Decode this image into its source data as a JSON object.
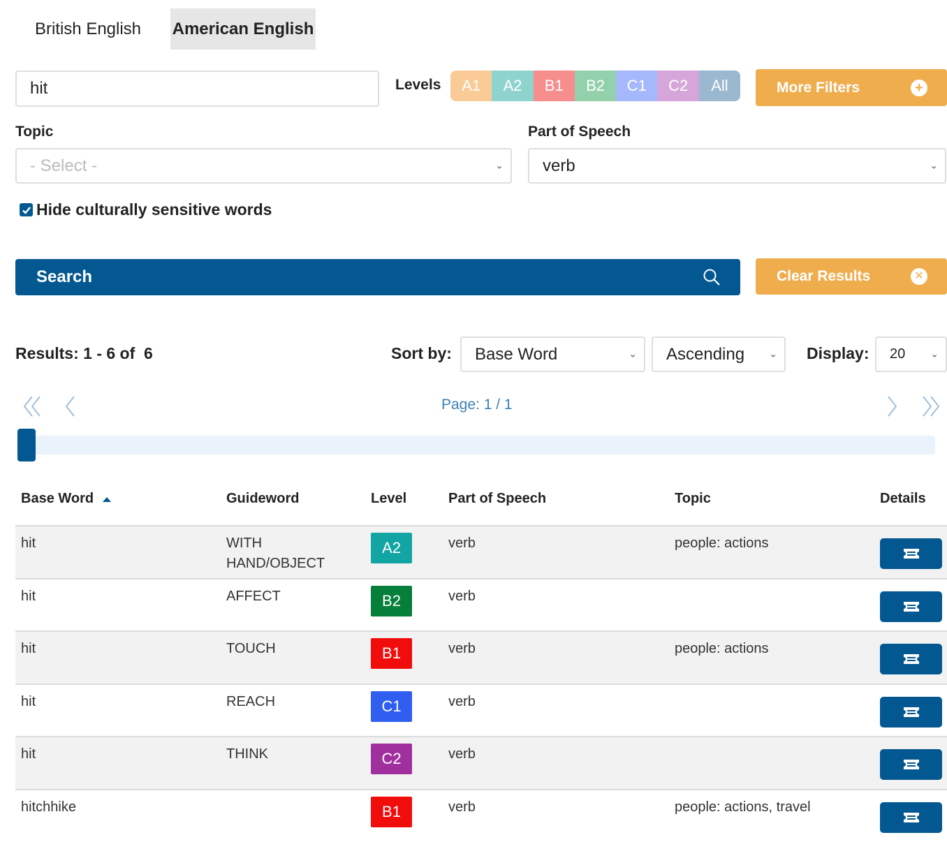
{
  "tabs": [
    {
      "label": "British English"
    },
    {
      "label": "American English"
    }
  ],
  "search": {
    "value": "hit"
  },
  "levels": {
    "label": "Levels",
    "items": [
      {
        "label": "A1",
        "color": "#fbcb97"
      },
      {
        "label": "A2",
        "color": "#8fd3cf"
      },
      {
        "label": "B1",
        "color": "#f78e8e"
      },
      {
        "label": "B2",
        "color": "#93d1ad"
      },
      {
        "label": "C1",
        "color": "#a5b8fb"
      },
      {
        "label": "C2",
        "color": "#d6a6da"
      },
      {
        "label": "All",
        "color": "#9bb8d1"
      }
    ]
  },
  "more_filters": {
    "label": "More Filters"
  },
  "topic": {
    "label": "Topic",
    "placeholder": "- Select -"
  },
  "part_of_speech": {
    "label": "Part of Speech",
    "value": "verb"
  },
  "hide_sensitive": {
    "label": "Hide culturally sensitive words",
    "checked": true
  },
  "search_button": {
    "label": "Search"
  },
  "clear_button": {
    "label": "Clear Results"
  },
  "results": {
    "label": "Results: 1 - 6 of  6"
  },
  "sort": {
    "label": "Sort by:",
    "field": "Base Word",
    "order": "Ascending"
  },
  "display": {
    "label": "Display:",
    "value": "20"
  },
  "pagination": {
    "label": "Page: 1 / 1",
    "progress": 0
  },
  "table": {
    "headers": {
      "base_word": "Base Word",
      "guideword": "Guideword",
      "level": "Level",
      "part_of_speech": "Part of Speech",
      "topic": "Topic",
      "details": "Details"
    },
    "rows": [
      {
        "base_word": "hit",
        "guideword": "WITH HAND/OBJECT",
        "level": "A2",
        "level_color": "#13a4a4",
        "pos": "verb",
        "topic": "people: actions"
      },
      {
        "base_word": "hit",
        "guideword": "AFFECT",
        "level": "B2",
        "level_color": "#067f3b",
        "pos": "verb",
        "topic": ""
      },
      {
        "base_word": "hit",
        "guideword": "TOUCH",
        "level": "B1",
        "level_color": "#f20d0d",
        "pos": "verb",
        "topic": "people: actions"
      },
      {
        "base_word": "hit",
        "guideword": "REACH",
        "level": "C1",
        "level_color": "#2f5ef0",
        "pos": "verb",
        "topic": ""
      },
      {
        "base_word": "hit",
        "guideword": "THINK",
        "level": "C2",
        "level_color": "#a0309e",
        "pos": "verb",
        "topic": ""
      },
      {
        "base_word": "hitchhike",
        "guideword": "",
        "level": "B1",
        "level_color": "#f20d0d",
        "pos": "verb",
        "topic": "people: actions, travel"
      }
    ]
  },
  "colors": {
    "primary": "#045891",
    "accent": "#f0ad4e"
  }
}
